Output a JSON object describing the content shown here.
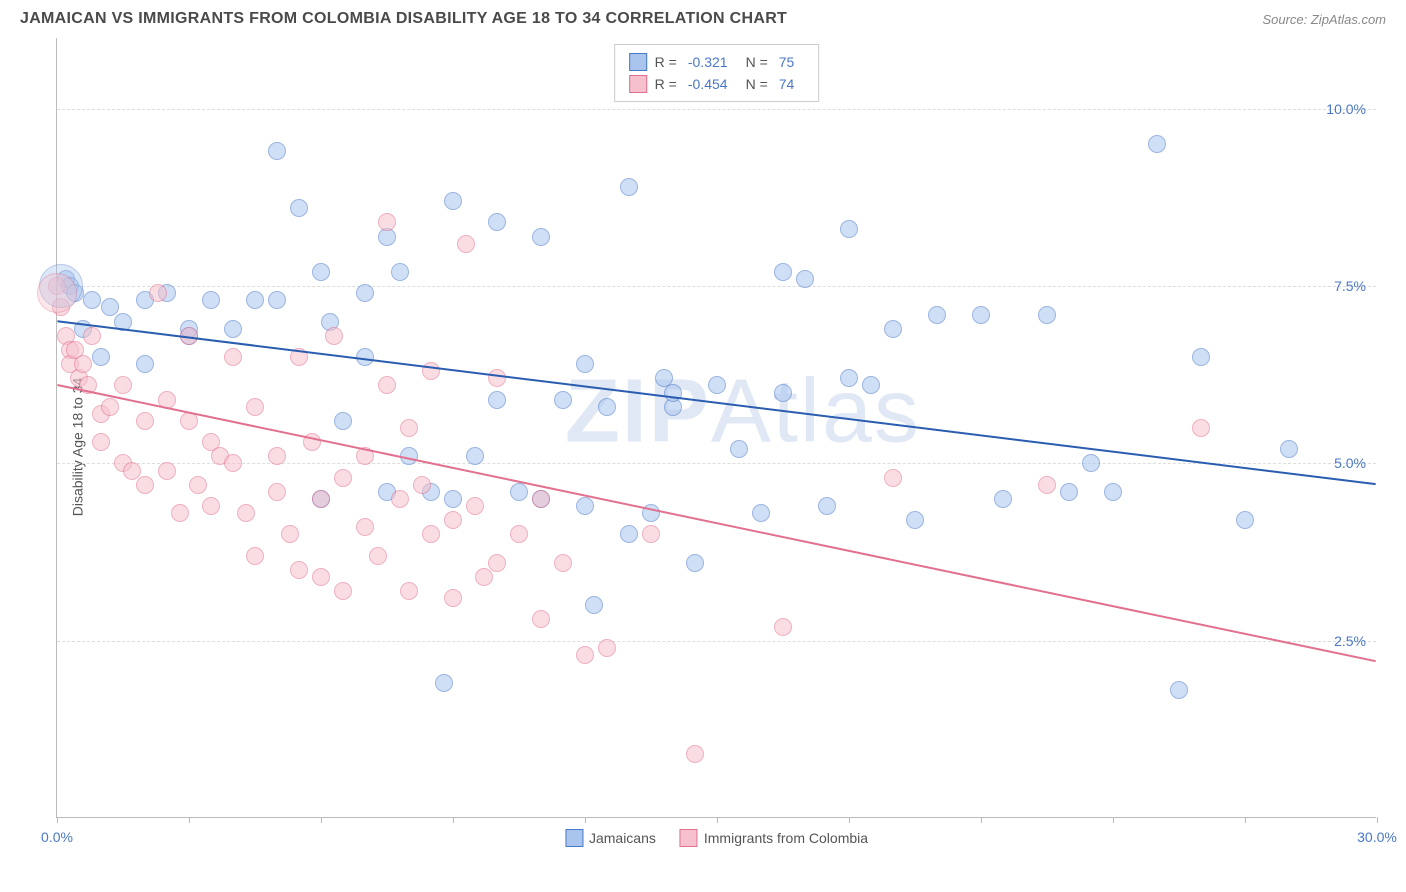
{
  "title": "JAMAICAN VS IMMIGRANTS FROM COLOMBIA DISABILITY AGE 18 TO 34 CORRELATION CHART",
  "source": "Source: ZipAtlas.com",
  "ylabel": "Disability Age 18 to 34",
  "watermark_bold": "ZIP",
  "watermark_thin": "Atlas",
  "chart": {
    "type": "scatter-with-trend",
    "background_color": "#ffffff",
    "grid_color": "#dddddd",
    "axis_color": "#bbbbbb",
    "tick_label_color": "#4a78c9",
    "xlim": [
      0,
      30
    ],
    "ylim": [
      0,
      11
    ],
    "xticks": [
      0,
      3,
      6,
      9,
      12,
      15,
      18,
      21,
      24,
      27,
      30
    ],
    "xtick_labels": {
      "0": "0.0%",
      "30": "30.0%"
    },
    "yticks": [
      2.5,
      5.0,
      7.5,
      10.0
    ],
    "ytick_labels": [
      "2.5%",
      "5.0%",
      "7.5%",
      "10.0%"
    ],
    "point_radius": 9,
    "point_stroke_width": 1.5,
    "trend_line_width": 2,
    "series": [
      {
        "name": "Jamaicans",
        "fill": "#a9c5ee",
        "stroke": "#4a78c9",
        "fill_opacity": 0.55,
        "r_value": "-0.321",
        "n_value": "75",
        "trend": {
          "x1": 0,
          "y1": 7.0,
          "x2": 30,
          "y2": 4.7,
          "color": "#2a5db0"
        },
        "points": [
          [
            0.2,
            7.6
          ],
          [
            0.3,
            7.5
          ],
          [
            0.4,
            7.4
          ],
          [
            0.6,
            6.9
          ],
          [
            0.8,
            7.3
          ],
          [
            1.0,
            6.5
          ],
          [
            1.2,
            7.2
          ],
          [
            1.5,
            7.0
          ],
          [
            2.0,
            6.4
          ],
          [
            2.0,
            7.3
          ],
          [
            2.5,
            7.4
          ],
          [
            3.0,
            6.8
          ],
          [
            3.0,
            6.9
          ],
          [
            3.5,
            7.3
          ],
          [
            4.0,
            6.9
          ],
          [
            4.5,
            7.3
          ],
          [
            5.0,
            7.3
          ],
          [
            5.0,
            9.4
          ],
          [
            5.5,
            8.6
          ],
          [
            6.0,
            4.5
          ],
          [
            6.0,
            7.7
          ],
          [
            6.2,
            7.0
          ],
          [
            6.5,
            5.6
          ],
          [
            7.0,
            6.5
          ],
          [
            7.0,
            7.4
          ],
          [
            7.5,
            8.2
          ],
          [
            7.5,
            4.6
          ],
          [
            7.8,
            7.7
          ],
          [
            8.0,
            5.1
          ],
          [
            8.5,
            4.6
          ],
          [
            8.8,
            1.9
          ],
          [
            9.0,
            4.5
          ],
          [
            9.0,
            8.7
          ],
          [
            9.5,
            5.1
          ],
          [
            10.0,
            5.9
          ],
          [
            10.0,
            8.4
          ],
          [
            10.5,
            4.6
          ],
          [
            11.0,
            8.2
          ],
          [
            11.0,
            4.5
          ],
          [
            11.5,
            5.9
          ],
          [
            12.0,
            4.4
          ],
          [
            12.0,
            6.4
          ],
          [
            12.2,
            3.0
          ],
          [
            12.5,
            5.8
          ],
          [
            13.0,
            8.9
          ],
          [
            13.0,
            4.0
          ],
          [
            13.5,
            4.3
          ],
          [
            14.0,
            5.8
          ],
          [
            14.0,
            6.0
          ],
          [
            14.5,
            3.6
          ],
          [
            15.0,
            6.1
          ],
          [
            15.5,
            5.2
          ],
          [
            16.0,
            4.3
          ],
          [
            16.5,
            6.0
          ],
          [
            16.5,
            7.7
          ],
          [
            17.0,
            7.6
          ],
          [
            17.5,
            4.4
          ],
          [
            18.0,
            6.2
          ],
          [
            18.0,
            8.3
          ],
          [
            18.5,
            6.1
          ],
          [
            19.0,
            6.9
          ],
          [
            19.5,
            4.2
          ],
          [
            20.0,
            7.1
          ],
          [
            21.0,
            7.1
          ],
          [
            21.5,
            4.5
          ],
          [
            22.5,
            7.1
          ],
          [
            23.0,
            4.6
          ],
          [
            24.0,
            4.6
          ],
          [
            25.0,
            9.5
          ],
          [
            25.5,
            1.8
          ],
          [
            26.0,
            6.5
          ],
          [
            27.0,
            4.2
          ],
          [
            28.0,
            5.2
          ],
          [
            23.5,
            5.0
          ],
          [
            13.8,
            6.2
          ]
        ]
      },
      {
        "name": "Immigrants from Colombia",
        "fill": "#f6c1cd",
        "stroke": "#e2708f",
        "fill_opacity": 0.55,
        "r_value": "-0.454",
        "n_value": "74",
        "trend": {
          "x1": 0,
          "y1": 6.1,
          "x2": 30,
          "y2": 2.2,
          "color": "#e2708f"
        },
        "points": [
          [
            0.0,
            7.5
          ],
          [
            0.1,
            7.2
          ],
          [
            0.2,
            6.8
          ],
          [
            0.3,
            6.6
          ],
          [
            0.3,
            6.4
          ],
          [
            0.4,
            6.6
          ],
          [
            0.5,
            6.2
          ],
          [
            0.6,
            6.4
          ],
          [
            0.7,
            6.1
          ],
          [
            0.8,
            6.8
          ],
          [
            1.0,
            5.7
          ],
          [
            1.0,
            5.3
          ],
          [
            1.2,
            5.8
          ],
          [
            1.5,
            5.0
          ],
          [
            1.5,
            6.1
          ],
          [
            1.7,
            4.9
          ],
          [
            2.0,
            5.6
          ],
          [
            2.0,
            4.7
          ],
          [
            2.3,
            7.4
          ],
          [
            2.5,
            5.9
          ],
          [
            2.5,
            4.9
          ],
          [
            2.8,
            4.3
          ],
          [
            3.0,
            5.6
          ],
          [
            3.0,
            6.8
          ],
          [
            3.2,
            4.7
          ],
          [
            3.5,
            5.3
          ],
          [
            3.5,
            4.4
          ],
          [
            3.7,
            5.1
          ],
          [
            4.0,
            6.5
          ],
          [
            4.0,
            5.0
          ],
          [
            4.3,
            4.3
          ],
          [
            4.5,
            5.8
          ],
          [
            4.5,
            3.7
          ],
          [
            5.0,
            5.1
          ],
          [
            5.0,
            4.6
          ],
          [
            5.3,
            4.0
          ],
          [
            5.5,
            6.5
          ],
          [
            5.5,
            3.5
          ],
          [
            5.8,
            5.3
          ],
          [
            6.0,
            4.5
          ],
          [
            6.0,
            3.4
          ],
          [
            6.3,
            6.8
          ],
          [
            6.5,
            4.8
          ],
          [
            6.5,
            3.2
          ],
          [
            7.0,
            5.1
          ],
          [
            7.0,
            4.1
          ],
          [
            7.3,
            3.7
          ],
          [
            7.5,
            8.4
          ],
          [
            7.5,
            6.1
          ],
          [
            7.8,
            4.5
          ],
          [
            8.0,
            5.5
          ],
          [
            8.0,
            3.2
          ],
          [
            8.3,
            4.7
          ],
          [
            8.5,
            6.3
          ],
          [
            8.5,
            4.0
          ],
          [
            9.0,
            4.2
          ],
          [
            9.0,
            3.1
          ],
          [
            9.5,
            4.4
          ],
          [
            9.7,
            3.4
          ],
          [
            10.0,
            6.2
          ],
          [
            10.0,
            3.6
          ],
          [
            10.5,
            4.0
          ],
          [
            11.0,
            4.5
          ],
          [
            11.0,
            2.8
          ],
          [
            11.5,
            3.6
          ],
          [
            12.0,
            2.3
          ],
          [
            12.5,
            2.4
          ],
          [
            13.5,
            4.0
          ],
          [
            14.5,
            0.9
          ],
          [
            16.5,
            2.7
          ],
          [
            19.0,
            4.8
          ],
          [
            22.5,
            4.7
          ],
          [
            26.0,
            5.5
          ],
          [
            9.3,
            8.1
          ]
        ]
      }
    ]
  },
  "legend_top_labels": {
    "r": "R =",
    "n": "N ="
  },
  "legend_bottom": [
    "Jamaicans",
    "Immigrants from Colombia"
  ]
}
